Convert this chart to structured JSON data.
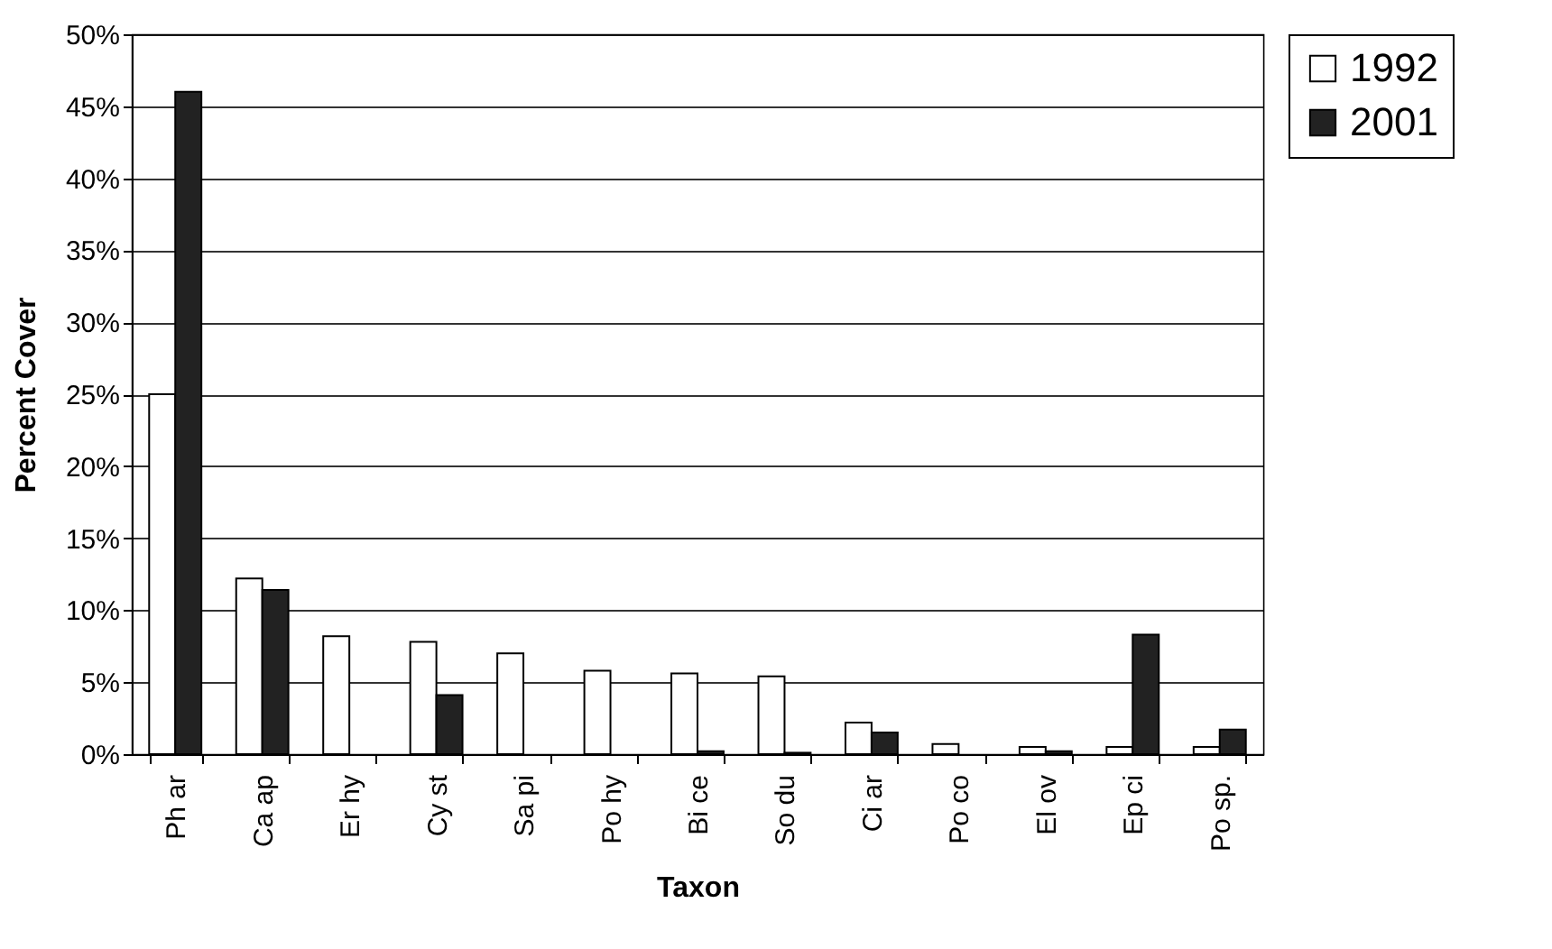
{
  "chart_data": {
    "type": "bar",
    "xlabel": "Taxon",
    "ylabel": "Percent Cover",
    "categories": [
      "Ph ar",
      "Ca ap",
      "Er hy",
      "Cy st",
      "Sa pi",
      "Po hy",
      "Bi ce",
      "So du",
      "Ci ar",
      "Po co",
      "El ov",
      "Ep ci",
      "Po sp."
    ],
    "series": [
      {
        "name": "1992",
        "color": "#ffffff",
        "values": [
          25,
          12.2,
          8.2,
          7.8,
          7.0,
          5.8,
          5.6,
          5.4,
          2.2,
          0.7,
          0.5,
          0.5,
          0.5
        ]
      },
      {
        "name": "2001",
        "color": "#222222",
        "values": [
          46,
          11.4,
          0,
          4.1,
          0,
          0,
          0.2,
          0.1,
          1.5,
          0,
          0.2,
          8.3,
          1.7
        ]
      }
    ],
    "ylim": [
      0,
      50
    ],
    "yticks": [
      {
        "value": 0,
        "label": "0%"
      },
      {
        "value": 5,
        "label": "5%"
      },
      {
        "value": 10,
        "label": "10%"
      },
      {
        "value": 15,
        "label": "15%"
      },
      {
        "value": 20,
        "label": "20%"
      },
      {
        "value": 25,
        "label": "25%"
      },
      {
        "value": 30,
        "label": "30%"
      },
      {
        "value": 35,
        "label": "35%"
      },
      {
        "value": 40,
        "label": "40%"
      },
      {
        "value": 45,
        "label": "45%"
      },
      {
        "value": 50,
        "label": "50%"
      }
    ],
    "grid": "y",
    "legend": "right"
  }
}
